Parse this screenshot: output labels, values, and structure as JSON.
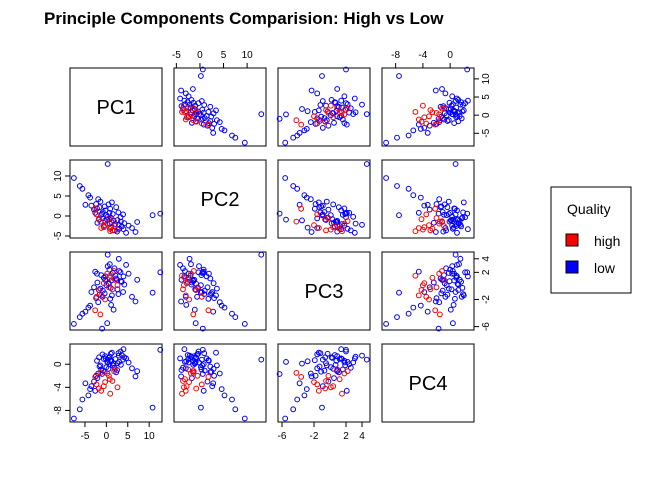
{
  "chart_data": {
    "type": "scatter",
    "title": "Principle Components Comparision: High vs Low",
    "variables": [
      "PC1",
      "PC2",
      "PC3",
      "PC4"
    ],
    "axes": {
      "PC1": {
        "range": [
          -8.5,
          13
        ],
        "ticks": [
          -5,
          0,
          5,
          10
        ]
      },
      "PC2": {
        "range": [
          -5.5,
          14
        ],
        "ticks": [
          -5,
          0,
          5,
          10
        ]
      },
      "PC3": {
        "range": [
          -6.5,
          5
        ],
        "ticks": [
          -6,
          -2,
          2,
          4
        ]
      },
      "PC4": {
        "range": [
          -10,
          3.5
        ],
        "ticks": [
          -8,
          -4,
          0
        ]
      }
    },
    "legend": {
      "title": "Quality",
      "position": "right",
      "entries": [
        {
          "label": "high",
          "color": "#ff0000"
        },
        {
          "label": "low",
          "color": "#0000ff"
        }
      ]
    },
    "series": [
      {
        "name": "low",
        "color": "#0000ff",
        "marker": "open-circle",
        "points": [
          [
            0.0,
            0.2,
            0.1,
            -0.5
          ],
          [
            1.2,
            -1.5,
            0.8,
            0.6
          ],
          [
            -0.8,
            1.0,
            -0.7,
            -1.1
          ],
          [
            2.1,
            -2.0,
            1.5,
            0.9
          ],
          [
            -1.6,
            2.2,
            -1.3,
            -0.4
          ],
          [
            0.6,
            -0.8,
            0.3,
            1.1
          ],
          [
            3.0,
            -3.2,
            2.2,
            0.4
          ],
          [
            -2.4,
            3.0,
            -1.8,
            -2.0
          ],
          [
            1.5,
            0.5,
            1.9,
            -0.2
          ],
          [
            -0.3,
            -1.2,
            0.9,
            1.4
          ],
          [
            2.6,
            -1.0,
            -0.5,
            0.2
          ],
          [
            -1.2,
            0.3,
            1.6,
            -0.9
          ],
          [
            0.9,
            1.8,
            -1.9,
            0.7
          ],
          [
            3.6,
            -2.6,
            0.6,
            1.6
          ],
          [
            -2.9,
            1.6,
            -0.2,
            -3.0
          ],
          [
            1.9,
            -3.6,
            2.6,
            -0.6
          ],
          [
            -0.6,
            -2.5,
            1.2,
            0.9
          ],
          [
            2.8,
            0.9,
            -1.2,
            1.9
          ],
          [
            -1.9,
            4.2,
            -2.4,
            -1.6
          ],
          [
            0.3,
            -0.2,
            2.9,
            0.3
          ],
          [
            4.2,
            -1.8,
            0.2,
            1.2
          ],
          [
            -3.5,
            2.6,
            -0.9,
            -3.8
          ],
          [
            1.1,
            -2.9,
            -2.8,
            0.5
          ],
          [
            2.3,
            2.2,
            1.1,
            -1.4
          ],
          [
            -0.9,
            -0.6,
            -1.6,
            1.7
          ],
          [
            0.5,
            2.9,
            0.4,
            -0.8
          ],
          [
            3.3,
            -0.3,
            2.0,
            2.2
          ],
          [
            -2.1,
            -1.7,
            0.5,
            -2.4
          ],
          [
            1.7,
            -1.1,
            -3.5,
            0.1
          ],
          [
            -0.2,
            1.4,
            1.4,
            1.0
          ],
          [
            2.5,
            -3.9,
            0.9,
            -1.0
          ],
          [
            -1.4,
            3.6,
            -0.4,
            -0.2
          ],
          [
            0.8,
            -1.9,
            3.2,
            1.3
          ],
          [
            3.9,
            0.4,
            -0.9,
            0.8
          ],
          [
            -2.6,
            0.8,
            2.1,
            -4.6
          ],
          [
            1.3,
            3.4,
            -1.4,
            2.0
          ],
          [
            -4.2,
            5.2,
            -3.2,
            -5.4
          ],
          [
            -5.6,
            6.8,
            -4.1,
            -6.1
          ],
          [
            -3.8,
            4.6,
            -2.9,
            -4.3
          ],
          [
            5.2,
            -2.4,
            1.8,
            0.3
          ],
          [
            -6.2,
            7.5,
            -4.6,
            -7.8
          ],
          [
            10.8,
            0.2,
            -1.0,
            -7.5
          ],
          [
            12.6,
            0.6,
            2.0,
            2.5
          ],
          [
            0.3,
            13.0,
            4.6,
            0.8
          ],
          [
            7.2,
            -1.5,
            0.9,
            -1.2
          ],
          [
            6.0,
            -3.0,
            -1.6,
            -0.7
          ],
          [
            -7.6,
            9.5,
            -5.6,
            -9.4
          ],
          [
            4.6,
            -4.2,
            3.1,
            1.0
          ],
          [
            -4.9,
            2.8,
            -3.8,
            -3.3
          ],
          [
            0.2,
            -0.9,
            -5.5,
            0.4
          ],
          [
            2.9,
            -2.2,
            4.0,
            1.5
          ],
          [
            -1.0,
            0.6,
            -6.3,
            -1.7
          ],
          [
            6.8,
            -4.0,
            -2.3,
            -2.1
          ],
          [
            4.0,
            -3.3,
            1.4,
            2.6
          ],
          [
            -2.2,
            1.9,
            1.8,
            0.6
          ],
          [
            1.0,
            -0.4,
            -0.3,
            1.8
          ],
          [
            -0.4,
            2.4,
            -1.1,
            -1.3
          ],
          [
            3.4,
            -1.4,
            0.7,
            -0.1
          ],
          [
            0.7,
            0.8,
            2.4,
            0.0
          ],
          [
            -1.7,
            -0.9,
            -0.6,
            1.2
          ]
        ]
      },
      {
        "name": "high",
        "color": "#ff0000",
        "marker": "open-circle",
        "points": [
          [
            -1.8,
            -0.8,
            -0.6,
            -4.2
          ],
          [
            -0.6,
            -2.8,
            0.4,
            -3.8
          ],
          [
            0.8,
            -3.2,
            1.2,
            -2.6
          ],
          [
            1.4,
            -3.6,
            -0.5,
            -2.9
          ],
          [
            -2.3,
            0.4,
            -1.6,
            -3.5
          ],
          [
            0.2,
            -1.9,
            1.8,
            -1.6
          ],
          [
            2.0,
            -2.5,
            0.9,
            -0.9
          ],
          [
            -1.2,
            -3.0,
            -1.4,
            -4.6
          ],
          [
            0.6,
            -0.5,
            -0.2,
            -2.0
          ],
          [
            1.8,
            -1.3,
            2.2,
            -1.2
          ],
          [
            -0.3,
            -2.3,
            -2.0,
            -3.1
          ],
          [
            2.6,
            -3.4,
            0.1,
            -4.0
          ],
          [
            -2.6,
            1.8,
            -3.6,
            -2.2
          ],
          [
            -1.4,
            -1.4,
            -4.2,
            -1.5
          ],
          [
            0.9,
            -3.8,
            1.5,
            -5.1
          ]
        ]
      }
    ]
  }
}
